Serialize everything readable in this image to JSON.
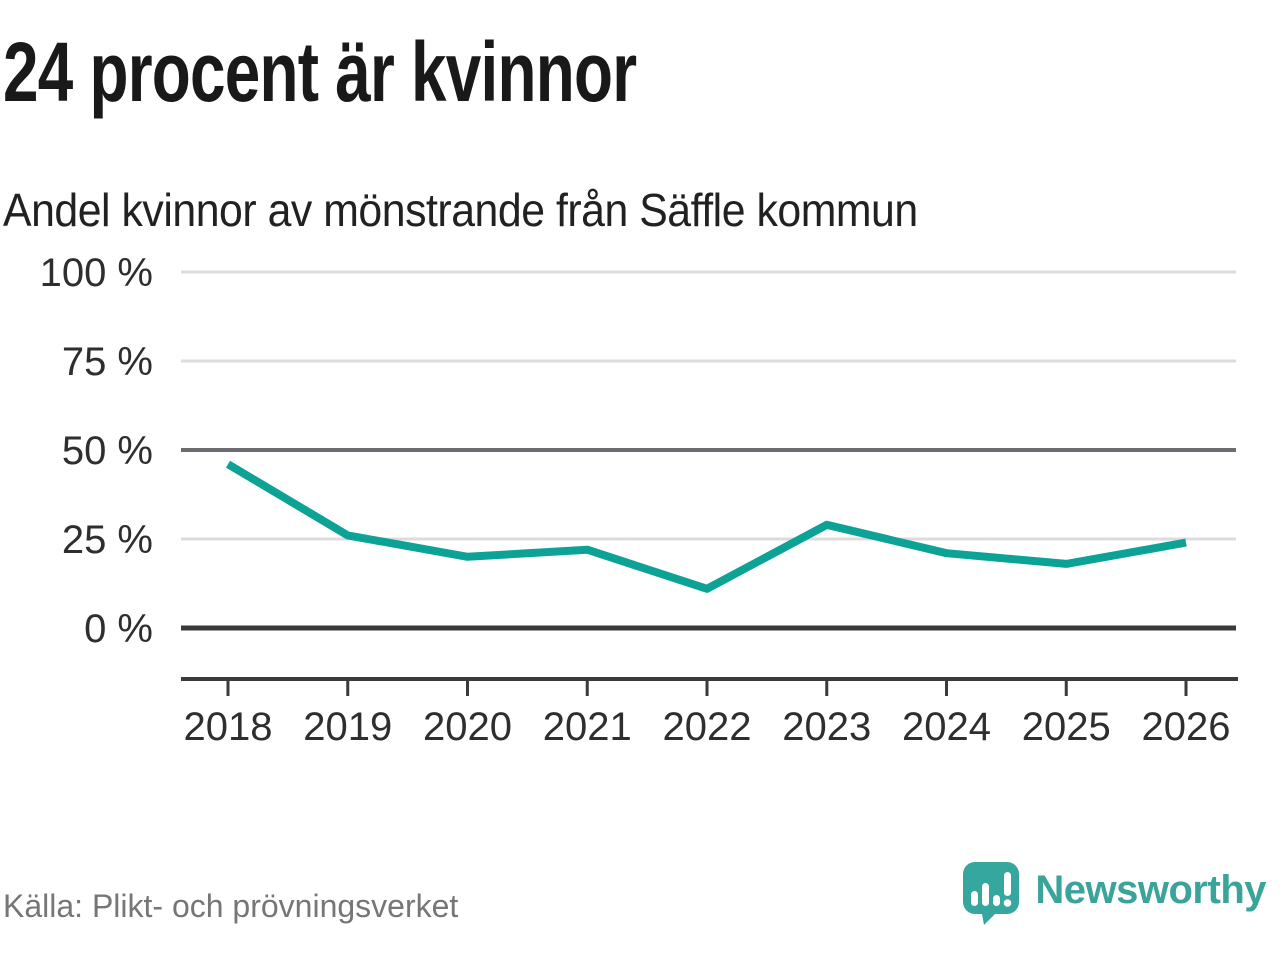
{
  "header": {
    "title": "24 procent är kvinnor",
    "subtitle": "Andel kvinnor av mönstrande från Säffle kommun"
  },
  "footer": {
    "source": "Källa: Plikt- och prövningsverket",
    "brand": "Newsworthy"
  },
  "colors": {
    "line": "#0da296",
    "logo_teal": "#3ba49a",
    "logo_bubble": "#35a79e",
    "grid_light": "#dcdcdc",
    "grid_mid": "#6b6b70",
    "grid_dark": "#3a3a3a",
    "axis_text": "#2e2e2e",
    "title_text": "#191919",
    "source_text": "#767676"
  },
  "chart_data": {
    "type": "line",
    "title": "24 procent är kvinnor",
    "subtitle": "Andel kvinnor av mönstrande från Säffle kommun",
    "x": [
      "2018",
      "2019",
      "2020",
      "2021",
      "2022",
      "2023",
      "2024",
      "2025",
      "2026"
    ],
    "series": [
      {
        "name": "Andel kvinnor av mönstrande från Säffle kommun",
        "values": [
          46,
          26,
          20,
          22,
          11,
          29,
          21,
          18,
          24
        ]
      }
    ],
    "unit": "%",
    "ylim": [
      0,
      100
    ],
    "yticks": [
      0,
      25,
      50,
      75,
      100
    ],
    "ytick_labels": [
      "0 %",
      "25 %",
      "50 %",
      "75 %",
      "100 %"
    ],
    "emphasized_gridlines": [
      50,
      0
    ],
    "grid": true,
    "legend": "none",
    "source": "Källa: Plikt- och prövningsverket"
  }
}
